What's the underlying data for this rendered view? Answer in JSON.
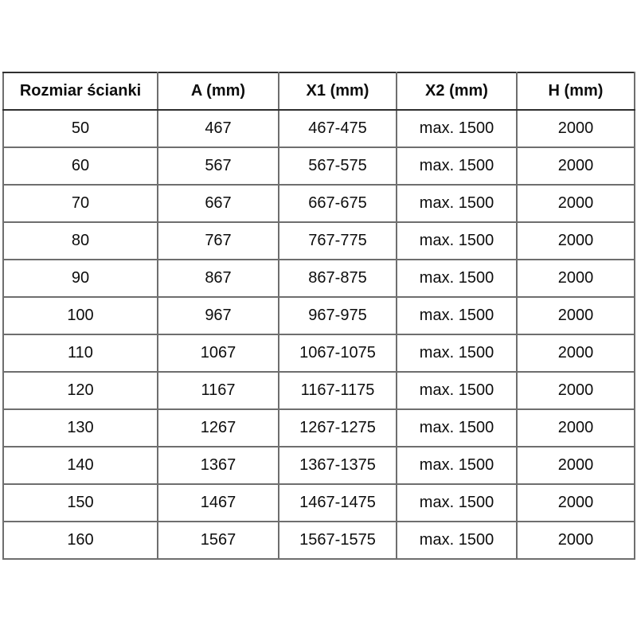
{
  "chart_data": {
    "type": "table",
    "columns": [
      "Rozmiar ścianki",
      "A (mm)",
      "X1 (mm)",
      "X2 (mm)",
      "H (mm)"
    ],
    "rows": [
      [
        "50",
        "467",
        "467-475",
        "max. 1500",
        "2000"
      ],
      [
        "60",
        "567",
        "567-575",
        "max. 1500",
        "2000"
      ],
      [
        "70",
        "667",
        "667-675",
        "max. 1500",
        "2000"
      ],
      [
        "80",
        "767",
        "767-775",
        "max. 1500",
        "2000"
      ],
      [
        "90",
        "867",
        "867-875",
        "max. 1500",
        "2000"
      ],
      [
        "100",
        "967",
        "967-975",
        "max. 1500",
        "2000"
      ],
      [
        "110",
        "1067",
        "1067-1075",
        "max. 1500",
        "2000"
      ],
      [
        "120",
        "1167",
        "1167-1175",
        "max. 1500",
        "2000"
      ],
      [
        "130",
        "1267",
        "1267-1275",
        "max. 1500",
        "2000"
      ],
      [
        "140",
        "1367",
        "1367-1375",
        "max. 1500",
        "2000"
      ],
      [
        "150",
        "1467",
        "1467-1475",
        "max. 1500",
        "2000"
      ],
      [
        "160",
        "1567",
        "1567-1575",
        "max. 1500",
        "2000"
      ]
    ],
    "layout": {
      "grid": "all-borders",
      "header_row": true,
      "cell_alignment": "center"
    }
  },
  "colors": {
    "border_outer": "#2f2f2f",
    "border_inner": "#6e6e6e",
    "text": "#0d0d0d",
    "background": "#ffffff"
  }
}
